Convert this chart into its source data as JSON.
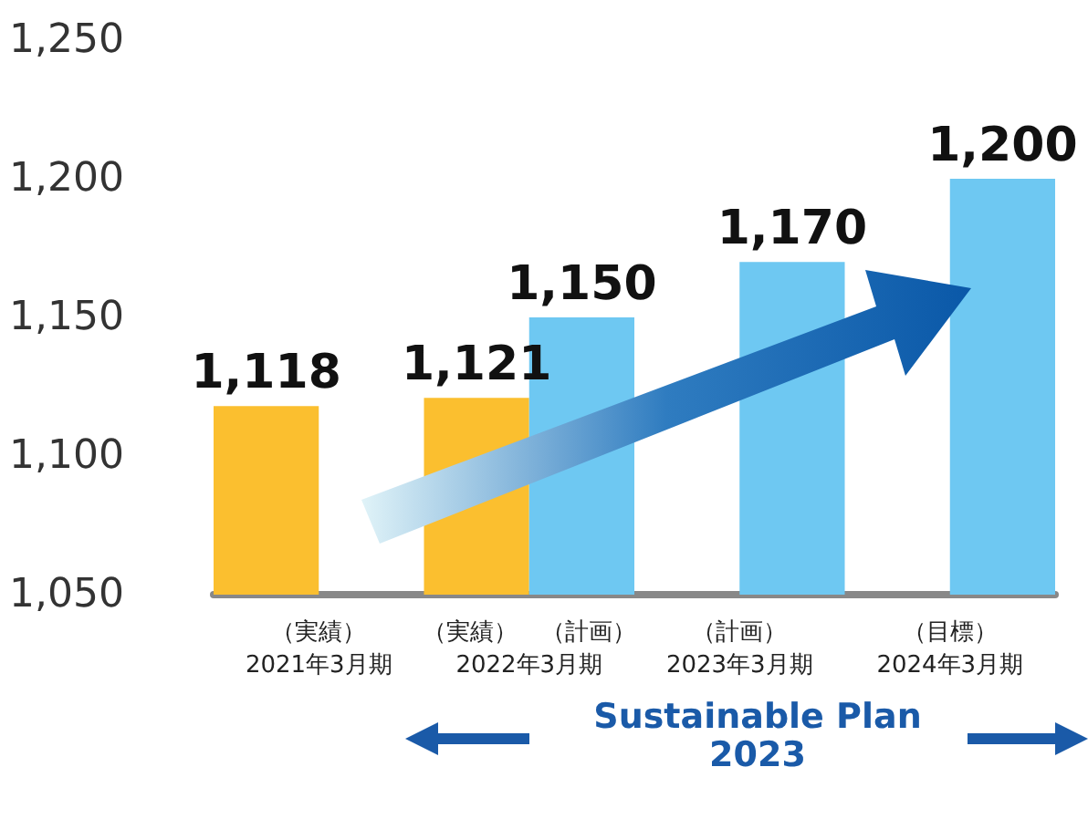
{
  "chart_data": {
    "type": "bar",
    "categories": [
      "（実績）\n2021年3月期",
      "（実績）　（計画）\n2022年3月期",
      "（計画）\n2023年3月期",
      "（目標）\n2024年3月期"
    ],
    "series": [
      {
        "color": "#fbbf2f",
        "values": [
          1118,
          1121,
          null,
          null
        ],
        "value_labels": [
          "1,118",
          "1,121",
          null,
          null
        ]
      },
      {
        "color": "#6ec8f2",
        "values": [
          null,
          1150,
          1170,
          1200
        ],
        "value_labels": [
          null,
          "1,150",
          "1,170",
          "1,200"
        ]
      }
    ],
    "ylim": [
      1050,
      1250
    ],
    "yticks": [
      {
        "value": 1050,
        "label": "1,050"
      },
      {
        "value": 1100,
        "label": "1,100"
      },
      {
        "value": 1150,
        "label": "1,150"
      },
      {
        "value": 1200,
        "label": "1,200"
      },
      {
        "value": 1250,
        "label": "1,250"
      }
    ],
    "grid": false,
    "annotations": [
      "Sustainable Plan 2023"
    ]
  }
}
